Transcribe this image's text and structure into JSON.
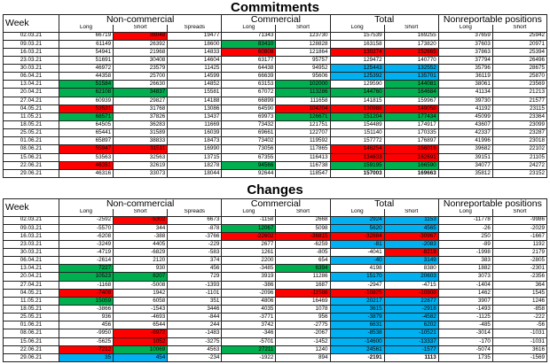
{
  "commitments": {
    "title": "Commitments",
    "headers": {
      "week": "Week",
      "noncommercial": "Non-commercial",
      "commercial": "Commercial",
      "total": "Total",
      "nonreportable": "Nonreportable positions",
      "long": "Long",
      "short": "Short",
      "spreads": "Spreads"
    },
    "rows": [
      {
        "date": "02.03.21",
        "v": [
          "66719",
          "38048",
          "19477",
          "71343",
          "123730",
          "157539",
          "169255",
          "37659",
          "25942"
        ],
        "c": [
          "",
          "r",
          "",
          "",
          "",
          "",
          "",
          "",
          ""
        ]
      },
      {
        "date": "09.03.21",
        "v": [
          "61149",
          "26392",
          "18600",
          "83410",
          "128828",
          "163158",
          "173820",
          "37603",
          "20971"
        ],
        "c": [
          "",
          "",
          "",
          "g",
          "",
          "",
          "",
          "",
          ""
        ]
      },
      {
        "date": "16.03.21",
        "v": [
          "54941",
          "21968",
          "14833",
          "60808",
          "121864",
          "130274",
          "152665",
          "37863",
          "25394"
        ],
        "c": [
          "",
          "",
          "",
          "r",
          "",
          "r",
          "r",
          "",
          ""
        ]
      },
      {
        "date": "23.03.21",
        "v": [
          "51691",
          "30408",
          "14604",
          "63177",
          "95757",
          "129472",
          "140770",
          "37794",
          "26496"
        ],
        "c": [
          "",
          "",
          "",
          "",
          "",
          "",
          "",
          "",
          ""
        ]
      },
      {
        "date": "30.03.21",
        "v": [
          "46972",
          "23579",
          "11425",
          "64438",
          "94952",
          "125443",
          "132552",
          "35796",
          "28675"
        ],
        "c": [
          "",
          "",
          "",
          "",
          "",
          "b",
          "b",
          "",
          ""
        ]
      },
      {
        "date": "06.04.21",
        "v": [
          "44358",
          "25700",
          "14599",
          "66639",
          "95606",
          "125392",
          "135701",
          "36119",
          "25870"
        ],
        "c": [
          "",
          "",
          "",
          "",
          "",
          "b",
          "b",
          "",
          ""
        ]
      },
      {
        "date": "13.04.21",
        "v": [
          "51584",
          "26630",
          "14852",
          "63153",
          "102000",
          "129590",
          "144081",
          "38061",
          "23569"
        ],
        "c": [
          "g",
          "",
          "",
          "",
          "g",
          "",
          "g",
          "",
          ""
        ]
      },
      {
        "date": "20.04.21",
        "v": [
          "62108",
          "34837",
          "15581",
          "67072",
          "113286",
          "144760",
          "164684",
          "41134",
          "21213"
        ],
        "c": [
          "g",
          "g",
          "",
          "",
          "g",
          "g",
          "g",
          "",
          ""
        ]
      },
      {
        "date": "27.04.21",
        "v": [
          "60939",
          "29827",
          "14188",
          "66899",
          "111658",
          "141815",
          "159967",
          "39730",
          "21577"
        ],
        "c": [
          "",
          "",
          "",
          "",
          "",
          "",
          "",
          "",
          ""
        ]
      },
      {
        "date": "04.05.21",
        "v": [
          "53531",
          "31768",
          "13086",
          "64590",
          "104204",
          "130988",
          "149058",
          "41192",
          "23115"
        ],
        "c": [
          "r",
          "",
          "",
          "",
          "r",
          "r",
          "r",
          "",
          ""
        ]
      },
      {
        "date": "11.05.21",
        "v": [
          "68571",
          "37826",
          "13437",
          "69973",
          "126671",
          "151204",
          "177434",
          "45099",
          "23364"
        ],
        "c": [
          "g",
          "",
          "",
          "",
          "g",
          "g",
          "g",
          "",
          ""
        ]
      },
      {
        "date": "18.05.21",
        "v": [
          "64505",
          "36283",
          "11669",
          "73432",
          "121751",
          "154489",
          "174917",
          "43607",
          "23099"
        ],
        "c": [
          "",
          "",
          "",
          "",
          "",
          "",
          "",
          "",
          ""
        ]
      },
      {
        "date": "25.05.21",
        "v": [
          "65441",
          "31589",
          "16039",
          "69661",
          "122707",
          "151140",
          "170335",
          "42337",
          "23287"
        ],
        "c": [
          "",
          "",
          "",
          "",
          "",
          "",
          "",
          "",
          ""
        ]
      },
      {
        "date": "01.06.21",
        "v": [
          "65897",
          "38833",
          "18473",
          "73402",
          "119592",
          "157772",
          "176897",
          "41996",
          "23018"
        ],
        "c": [
          "",
          "",
          "",
          "",
          "",
          "",
          "",
          "",
          ""
        ]
      },
      {
        "date": "08.06.21",
        "v": [
          "55947",
          "31511",
          "16990",
          "73056",
          "117865",
          "146254",
          "166016",
          "39682",
          "22102"
        ],
        "c": [
          "r",
          "r",
          "",
          "",
          "",
          "r",
          "r",
          "",
          ""
        ]
      },
      {
        "date": "15.06.21",
        "v": [
          "53563",
          "32563",
          "13715",
          "67355",
          "116413",
          "134633",
          "162691",
          "39151",
          "21105"
        ],
        "c": [
          "",
          "",
          "",
          "",
          "",
          "r",
          "r",
          "",
          ""
        ]
      },
      {
        "date": "22.06.21",
        "v": [
          "46351",
          "32619",
          "18278",
          "94566",
          "116738",
          "159195",
          "166590",
          "34077",
          "24272"
        ],
        "c": [
          "r",
          "",
          "",
          "g",
          "",
          "g",
          "g",
          "",
          ""
        ]
      },
      {
        "date": "29.06.21",
        "v": [
          "46316",
          "33073",
          "18044",
          "92644",
          "118547",
          "157003",
          "169663",
          "35812",
          "23152"
        ],
        "c": [
          "",
          "",
          "",
          "",
          "",
          "",
          "",
          "",
          ""
        ],
        "bold": [
          false,
          false,
          false,
          false,
          false,
          true,
          true,
          false,
          false
        ]
      }
    ]
  },
  "changes": {
    "title": "Changes",
    "headers": {
      "week": "Week",
      "noncommercial": "Non-commercial",
      "commercial": "Commercial",
      "total": "Total",
      "nonreportable": "Nonreportable positions",
      "long": "Long",
      "short": "Short",
      "spreads": "Spreads"
    },
    "rows": [
      {
        "date": "02.03.21",
        "v": [
          "-2592",
          "-5302",
          "6673",
          "-1158",
          "2668",
          "2924",
          "1153",
          "-11778",
          "-9986"
        ],
        "c": [
          "",
          "r",
          "",
          "",
          "",
          "b",
          "b",
          "",
          ""
        ]
      },
      {
        "date": "09.03.21",
        "v": [
          "-5570",
          "344",
          "-878",
          "12067",
          "5098",
          "5620",
          "4565",
          "-26",
          "-2029"
        ],
        "c": [
          "",
          "",
          "",
          "g",
          "",
          "b",
          "b",
          "",
          ""
        ]
      },
      {
        "date": "16.03.21",
        "v": [
          "-6208",
          "-388",
          "-3766",
          "-22602",
          "-36815",
          "-32884",
          "-30967",
          "250",
          "-1667"
        ],
        "c": [
          "",
          "",
          "",
          "r",
          "r",
          "r",
          "r",
          "",
          ""
        ]
      },
      {
        "date": "23.03.21",
        "v": [
          "-3249",
          "4405",
          "-229",
          "2677",
          "-6259",
          "-81",
          "-2083",
          "-89",
          "1192"
        ],
        "c": [
          "",
          "",
          "",
          "",
          "",
          "b",
          "b",
          "",
          ""
        ]
      },
      {
        "date": "30.03.21",
        "v": [
          "-4719",
          "-6829",
          "-583",
          "1261",
          "-805",
          "-4041",
          "-8218",
          "-1998",
          "2179"
        ],
        "c": [
          "",
          "",
          "",
          "",
          "",
          "",
          "r",
          "",
          ""
        ]
      },
      {
        "date": "06.04.21",
        "v": [
          "-2614",
          "2120",
          "374",
          "2200",
          "654",
          "-40",
          "3149",
          "383",
          "-2805"
        ],
        "c": [
          "",
          "",
          "",
          "",
          "",
          "b",
          "b",
          "",
          ""
        ]
      },
      {
        "date": "13.04.21",
        "v": [
          "7227",
          "930",
          "456",
          "-3485",
          "6394",
          "4198",
          "8380",
          "1882",
          "-2301"
        ],
        "c": [
          "g",
          "",
          "",
          "",
          "g",
          "",
          "",
          "",
          ""
        ]
      },
      {
        "date": "20.04.21",
        "v": [
          "10523",
          "8207",
          "729",
          "3919",
          "11286",
          "15170",
          "20603",
          "3073",
          "-2356"
        ],
        "c": [
          "g",
          "g",
          "",
          "",
          "",
          "b",
          "b",
          "",
          ""
        ]
      },
      {
        "date": "27.04.21",
        "v": [
          "-1168",
          "-5008",
          "-1393",
          "-386",
          "1687",
          "-2947",
          "-4715",
          "-1404",
          "364"
        ],
        "c": [
          "",
          "",
          "",
          "",
          "",
          "",
          "",
          "",
          ""
        ]
      },
      {
        "date": "04.05.21",
        "v": [
          "-7408",
          "1942",
          "-1101",
          "-2096",
          "-11586",
          "-10825",
          "-10908",
          "1462",
          "1545"
        ],
        "c": [
          "r",
          "",
          "",
          "",
          "r",
          "r",
          "r",
          "",
          ""
        ]
      },
      {
        "date": "11.05.21",
        "v": [
          "15059",
          "6058",
          "351",
          "4806",
          "16469",
          "20217",
          "22877",
          "3907",
          "1246"
        ],
        "c": [
          "g",
          "",
          "",
          "",
          "",
          "b",
          "b",
          "",
          ""
        ]
      },
      {
        "date": "18.05.21",
        "v": [
          "-3866",
          "-1543",
          "3446",
          "4035",
          "1078",
          "3615",
          "-2918",
          "-1493",
          "-858"
        ],
        "c": [
          "",
          "",
          "",
          "",
          "",
          "b",
          "b",
          "",
          ""
        ]
      },
      {
        "date": "25.05.21",
        "v": [
          "936",
          "-4693",
          "-844",
          "-3771",
          "956",
          "-3879",
          "-4582",
          "-1125",
          "-222"
        ],
        "c": [
          "",
          "",
          "",
          "",
          "",
          "b",
          "b",
          "",
          ""
        ]
      },
      {
        "date": "01.06.21",
        "v": [
          "456",
          "6544",
          "244",
          "3742",
          "-2775",
          "6631",
          "6202",
          "-485",
          "-56"
        ],
        "c": [
          "",
          "",
          "",
          "",
          "",
          "b",
          "b",
          "",
          ""
        ]
      },
      {
        "date": "08.06.21",
        "v": [
          "-9950",
          "-6972",
          "-1483",
          "-346",
          "-2067",
          "-8538",
          "-10521",
          "-3014",
          "-1031"
        ],
        "c": [
          "",
          "r",
          "",
          "",
          "",
          "b",
          "b",
          "",
          ""
        ]
      },
      {
        "date": "15.06.21",
        "v": [
          "-5625",
          "1052",
          "-3275",
          "-5701",
          "-1452",
          "-14600",
          "-13337",
          "-170",
          "-1031"
        ],
        "c": [
          "",
          "r",
          "",
          "",
          "",
          "b",
          "b",
          "",
          ""
        ]
      },
      {
        "date": "22.06.21",
        "v": [
          "-7212",
          "10069",
          "4563",
          "27211",
          "1240",
          "24561",
          "-1577",
          "-5074",
          "3616"
        ],
        "c": [
          "r",
          "g",
          "",
          "g",
          "",
          "b",
          "b",
          "",
          ""
        ]
      },
      {
        "date": "29.06.21",
        "v": [
          "35",
          "454",
          "-234",
          "-1922",
          "894",
          "-2191",
          "1113",
          "1735",
          "-1569"
        ],
        "c": [
          "b",
          "b",
          "",
          "",
          "",
          "",
          "",
          "",
          ""
        ],
        "bold": [
          false,
          false,
          false,
          false,
          false,
          true,
          true,
          false,
          false
        ]
      }
    ]
  }
}
